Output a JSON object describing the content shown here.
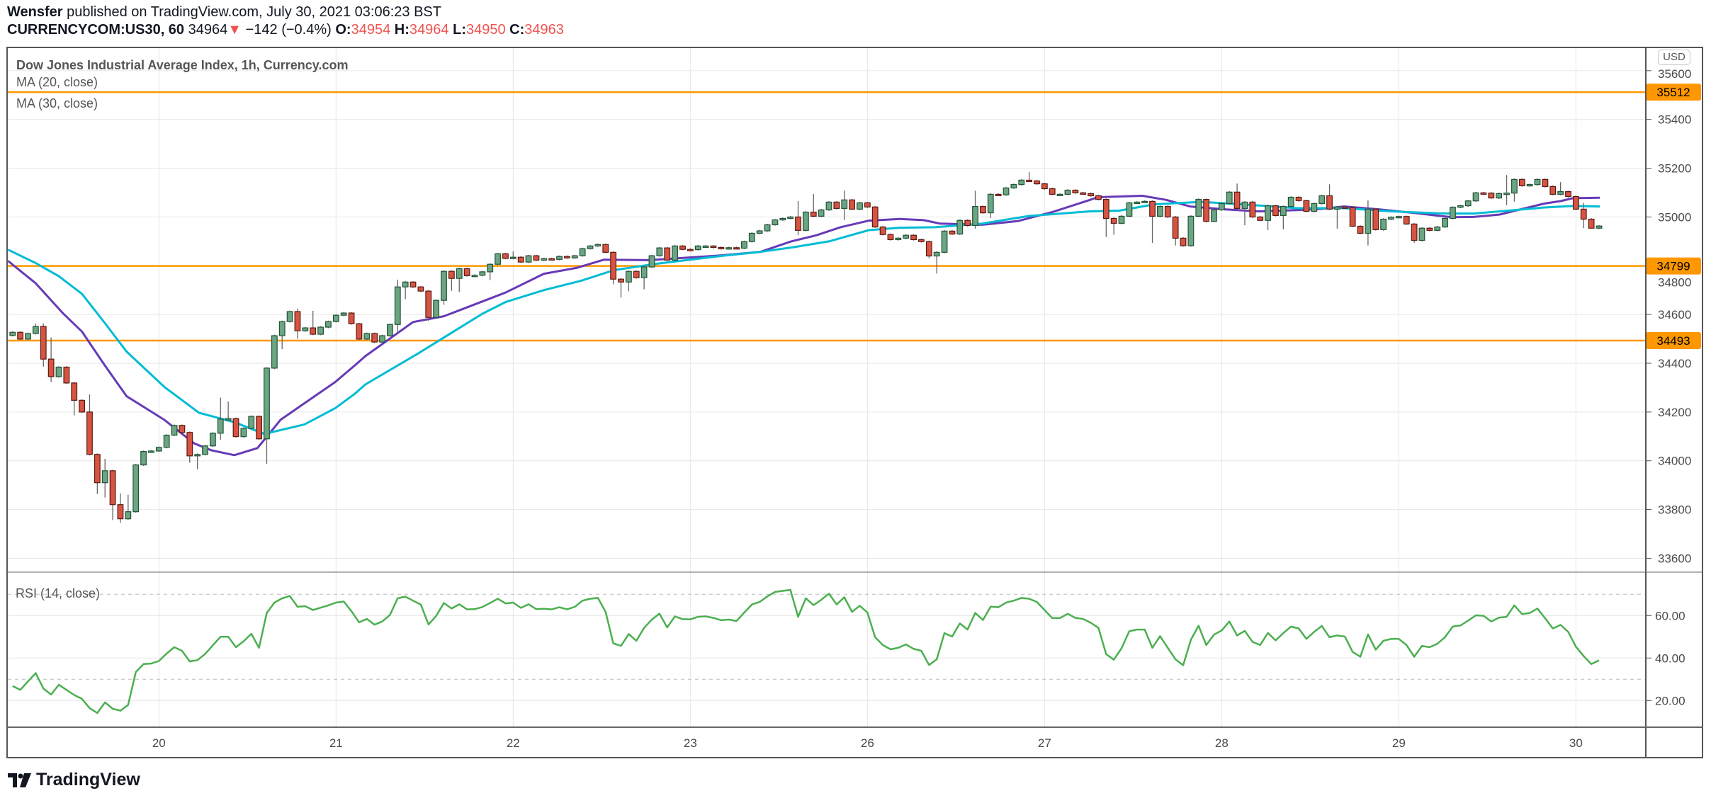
{
  "header": {
    "author": "Wensfer",
    "published": " published on TradingView.com, July 30, 2021 03:06:23 BST",
    "symbol": "CURRENCYCOM:US30, 60",
    "last": "34964",
    "direction_icon": "triangle-down-icon",
    "change": "−142 (−0.4%)",
    "o_label": "O:",
    "o": "34954",
    "h_label": "H:",
    "h": "34964",
    "l_label": "L:",
    "l": "34950",
    "c_label": "C:",
    "c": "34963"
  },
  "legend": {
    "title": "Dow Jones Industrial Average Index, 1h, Currency.com",
    "ma20": "MA (20, close)",
    "ma30": "MA (30, close)"
  },
  "rsi_label": "RSI (14, close)",
  "currency": "USD",
  "logo": "TradingView",
  "colors": {
    "up": "#6ba583",
    "up_border": "#225437",
    "down": "#d75442",
    "down_border": "#5b1a13",
    "ma20": "#673ab7",
    "ma30": "#00bcd4",
    "level": "#ff9800",
    "rsi": "#4caf50",
    "negative": "#ef5350"
  },
  "chart_data": [
    {
      "type": "candlestick",
      "title": "Dow Jones Industrial Average Index, 1h, Currency.com",
      "ylim": [
        33550,
        35640
      ],
      "yticks": [
        "35600",
        "35400",
        "35200",
        "35000",
        "34800",
        "34600",
        "34400",
        "34200",
        "34000",
        "33800",
        "33600"
      ],
      "xticks": [
        {
          "bar": 20,
          "label": "20"
        },
        {
          "bar": 43,
          "label": "21"
        },
        {
          "bar": 66,
          "label": "22"
        },
        {
          "bar": 89,
          "label": "23"
        },
        {
          "bar": 112,
          "label": "26"
        },
        {
          "bar": 135,
          "label": "27"
        },
        {
          "bar": 158,
          "label": "28"
        },
        {
          "bar": 181,
          "label": "29"
        },
        {
          "bar": 204,
          "label": "30"
        }
      ],
      "grid": true,
      "horizontal_levels": [
        35512,
        34799,
        34493
      ],
      "first_open": 34514,
      "close": [
        34527,
        34499,
        34522,
        34551,
        34417,
        34345,
        34384,
        34319,
        34248,
        34200,
        34026,
        33910,
        33959,
        33820,
        33762,
        33791,
        33983,
        34038,
        34040,
        34055,
        34105,
        34145,
        34116,
        34020,
        34026,
        34061,
        34113,
        34171,
        34173,
        34099,
        34133,
        34182,
        34090,
        34380,
        34513,
        34571,
        34612,
        34533,
        34545,
        34519,
        34548,
        34571,
        34597,
        34606,
        34562,
        34499,
        34522,
        34487,
        34513,
        34559,
        34713,
        34733,
        34713,
        34696,
        34588,
        34658,
        34777,
        34748,
        34788,
        34759,
        34761,
        34775,
        34806,
        34849,
        34830,
        34835,
        34815,
        34841,
        34823,
        34829,
        34826,
        34838,
        34832,
        34841,
        34870,
        34881,
        34887,
        34855,
        34745,
        34733,
        34777,
        34751,
        34795,
        34841,
        34873,
        34823,
        34881,
        34867,
        34866,
        34881,
        34881,
        34875,
        34870,
        34874,
        34872,
        34899,
        34933,
        34943,
        34968,
        34988,
        34994,
        35000,
        34945,
        35020,
        35003,
        35029,
        35061,
        35035,
        35070,
        35032,
        35058,
        35041,
        34959,
        34928,
        34907,
        34913,
        34925,
        34907,
        34899,
        34840,
        34855,
        34942,
        34930,
        34986,
        34965,
        35043,
        35017,
        35093,
        35091,
        35119,
        35133,
        35151,
        35148,
        35136,
        35116,
        35093,
        35093,
        35110,
        35099,
        35096,
        35087,
        35072,
        34994,
        34974,
        35003,
        35058,
        35061,
        35064,
        35003,
        35043,
        35000,
        34913,
        34882,
        35003,
        35072,
        34982,
        35029,
        35055,
        35102,
        35035,
        35061,
        35000,
        34986,
        35046,
        35006,
        35043,
        35081,
        35067,
        35023,
        35055,
        35087,
        35032,
        35041,
        35038,
        34962,
        34933,
        35032,
        34948,
        34991,
        34999,
        35002,
        34971,
        34904,
        34954,
        34945,
        34959,
        34994,
        35040,
        35046,
        35066,
        35099,
        35098,
        35078,
        35096,
        35098,
        35154,
        35128,
        35133,
        35154,
        35125,
        35093,
        35104,
        35084,
        35032,
        34991,
        34954,
        34963
      ],
      "highs": {
        "4": 34563,
        "5": 34563,
        "6": 34506,
        "11": 34272,
        "13": 34008,
        "15": 33866,
        "16": 33861,
        "28": 34259,
        "29": 34243,
        "38": 34624,
        "40": 34615,
        "51": 34743,
        "66": 34859,
        "87": 34885,
        "103": 35065,
        "105": 35094,
        "109": 35108,
        "126": 35108,
        "133": 35184,
        "160": 35137,
        "172": 35134,
        "177": 35068,
        "195": 35172,
        "202": 35143,
        "205": 35058
      },
      "lows": {
        "2": 34495,
        "5": 34386,
        "6": 34323,
        "9": 34186,
        "12": 33864,
        "13": 33849,
        "14": 33757,
        "15": 33745,
        "24": 33992,
        "25": 33965,
        "28": 34086,
        "34": 33987,
        "36": 34458,
        "38": 34500,
        "51": 34526,
        "52": 34663,
        "55": 34574,
        "57": 34640,
        "58": 34697,
        "59": 34692,
        "63": 34741,
        "79": 34724,
        "80": 34669,
        "81": 34695,
        "83": 34703,
        "103": 34925,
        "109": 34987,
        "120": 34831,
        "121": 34768,
        "126": 34952,
        "128": 34996,
        "143": 34918,
        "144": 34927,
        "149": 34894,
        "152": 34883,
        "161": 34966,
        "164": 34946,
        "166": 34949,
        "173": 34952,
        "177": 34883,
        "183": 34894,
        "195": 35048,
        "196": 35063,
        "205": 34954,
        "206": 34952
      },
      "series": [
        {
          "name": "MA (20, close)",
          "points": [
            [
              0.4,
              34820
            ],
            [
              4,
              34728
            ],
            [
              7.6,
              34603
            ],
            [
              10,
              34530
            ],
            [
              13,
              34390
            ],
            [
              15.8,
              34265
            ],
            [
              20.7,
              34168
            ],
            [
              24.6,
              34071
            ],
            [
              26.8,
              34043
            ],
            [
              29.8,
              34023
            ],
            [
              32.8,
              34052
            ],
            [
              35.8,
              34168
            ],
            [
              38.9,
              34236
            ],
            [
              42.9,
              34323
            ],
            [
              45.4,
              34390
            ],
            [
              46.8,
              34429
            ],
            [
              53,
              34569
            ],
            [
              57,
              34593
            ],
            [
              65,
              34690
            ],
            [
              70,
              34767
            ],
            [
              74.2,
              34791
            ],
            [
              77.8,
              34825
            ],
            [
              83.7,
              34823
            ],
            [
              93.2,
              34843
            ],
            [
              98.1,
              34857
            ],
            [
              102.1,
              34900
            ],
            [
              105.4,
              34925
            ],
            [
              108.5,
              34958
            ],
            [
              112.2,
              34985
            ],
            [
              116.2,
              34992
            ],
            [
              119.3,
              34987
            ],
            [
              121.4,
              34973
            ],
            [
              126.9,
              34968
            ],
            [
              131.5,
              34983
            ],
            [
              136.1,
              35021
            ],
            [
              140.9,
              35070
            ],
            [
              141.9,
              35081
            ],
            [
              147.7,
              35087
            ],
            [
              150.8,
              35070
            ],
            [
              153.9,
              35043
            ],
            [
              158.5,
              35031
            ],
            [
              162.8,
              35023
            ],
            [
              167.7,
              35028
            ],
            [
              170.8,
              35033
            ],
            [
              173.9,
              35043
            ],
            [
              178.5,
              35031
            ],
            [
              183.1,
              35016
            ],
            [
              187.9,
              34999
            ],
            [
              190.7,
              35000
            ],
            [
              194.1,
              35010
            ],
            [
              196.8,
              35031
            ],
            [
              199.9,
              35055
            ],
            [
              202,
              35065
            ],
            [
              203.6,
              35077
            ],
            [
              207.1,
              35079
            ]
          ]
        },
        {
          "name": "MA (30, close)",
          "points": [
            [
              0.4,
              34866
            ],
            [
              4,
              34811
            ],
            [
              7,
              34757
            ],
            [
              10,
              34685
            ],
            [
              13,
              34564
            ],
            [
              15.8,
              34448
            ],
            [
              20.7,
              34303
            ],
            [
              25.2,
              34197
            ],
            [
              29.8,
              34158
            ],
            [
              33.7,
              34110
            ],
            [
              38.9,
              34149
            ],
            [
              42.9,
              34216
            ],
            [
              45.4,
              34274
            ],
            [
              46.8,
              34313
            ],
            [
              53.6,
              34439
            ],
            [
              62,
              34603
            ],
            [
              65,
              34651
            ],
            [
              70,
              34700
            ],
            [
              74.8,
              34738
            ],
            [
              79.1,
              34782
            ],
            [
              84.6,
              34808
            ],
            [
              93.2,
              34841
            ],
            [
              98.1,
              34857
            ],
            [
              102.4,
              34876
            ],
            [
              107,
              34900
            ],
            [
              112.2,
              34946
            ],
            [
              116.2,
              34956
            ],
            [
              120.8,
              34958
            ],
            [
              126.9,
              34973
            ],
            [
              133,
              35004
            ],
            [
              140.9,
              35023
            ],
            [
              144.7,
              35026
            ],
            [
              149.3,
              35052
            ],
            [
              155.4,
              35062
            ],
            [
              161.6,
              35050
            ],
            [
              167.7,
              35036
            ],
            [
              173.9,
              35036
            ],
            [
              180,
              35023
            ],
            [
              186.1,
              35015
            ],
            [
              190.7,
              35014
            ],
            [
              195.2,
              35026
            ],
            [
              199.9,
              35039
            ],
            [
              203.6,
              35045
            ],
            [
              207.1,
              35043
            ]
          ]
        }
      ]
    },
    {
      "type": "line",
      "title": "RSI (14, close)",
      "ylim": [
        8,
        77
      ],
      "yticks": [
        "60.00",
        "40.00",
        "20.00"
      ],
      "bands": [
        70,
        30
      ],
      "values": [
        26.8,
        25.0,
        29.0,
        32.9,
        25.6,
        22.8,
        27.4,
        25.0,
        22.6,
        20.8,
        16.4,
        14.1,
        19.1,
        16.1,
        15.2,
        17.9,
        33.4,
        37.2,
        37.4,
        38.6,
        42.1,
        45.1,
        43.4,
        38.4,
        39.0,
        41.9,
        46.0,
        50.0,
        50.0,
        45.1,
        47.9,
        51.4,
        44.8,
        61.2,
        66.1,
        68.1,
        69.2,
        64.1,
        64.4,
        62.6,
        63.7,
        64.8,
        66.1,
        66.6,
        62.0,
        56.8,
        58.4,
        55.7,
        57.2,
        60.3,
        68.1,
        68.9,
        67.0,
        65.2,
        55.8,
        59.8,
        65.9,
        63.3,
        65.3,
        62.9,
        63.0,
        64.0,
        65.9,
        67.9,
        65.7,
        66.1,
        63.6,
        65.3,
        63.0,
        63.2,
        62.9,
        63.9,
        62.9,
        64.1,
        67.0,
        67.9,
        68.3,
        61.7,
        46.9,
        45.7,
        51.3,
        48.1,
        54.2,
        58.1,
        60.9,
        54.4,
        59.6,
        58.3,
        58.2,
        59.4,
        59.6,
        58.9,
        57.8,
        58.1,
        57.4,
        61.4,
        65.2,
        66.4,
        69.0,
        71.1,
        71.6,
        72.1,
        59.4,
        68.1,
        64.9,
        67.4,
        70.3,
        65.2,
        68.6,
        61.7,
        64.6,
        61.4,
        49.8,
        46.1,
        44.1,
        44.8,
        46.4,
        44.3,
        43.4,
        36.7,
        39.4,
        51.7,
        50.1,
        56.3,
        53.4,
        61.2,
        57.9,
        64.2,
        63.9,
        66.1,
        67.0,
        68.3,
        67.9,
        66.4,
        62.6,
        58.8,
        58.8,
        60.8,
        58.9,
        58.4,
        56.6,
        54.2,
        41.8,
        39.2,
        44.6,
        52.6,
        53.4,
        53.4,
        44.8,
        50.3,
        44.8,
        39.4,
        36.6,
        48.6,
        55.2,
        46.1,
        51.0,
        53.0,
        57.2,
        50.6,
        52.8,
        47.6,
        46.1,
        51.8,
        48.3,
        51.7,
        54.8,
        53.9,
        49.0,
        52.3,
        55.1,
        49.8,
        50.6,
        50.1,
        42.9,
        40.6,
        51.1,
        43.9,
        48.1,
        49.0,
        49.0,
        46.1,
        40.6,
        45.7,
        45.1,
        46.7,
        49.8,
        54.8,
        55.3,
        57.6,
        60.1,
        59.9,
        57.2,
        59.0,
        59.4,
        64.8,
        60.7,
        61.2,
        63.3,
        58.7,
        53.9,
        55.6,
        52.3,
        45.3,
        40.9,
        37.2,
        38.9
      ]
    }
  ]
}
